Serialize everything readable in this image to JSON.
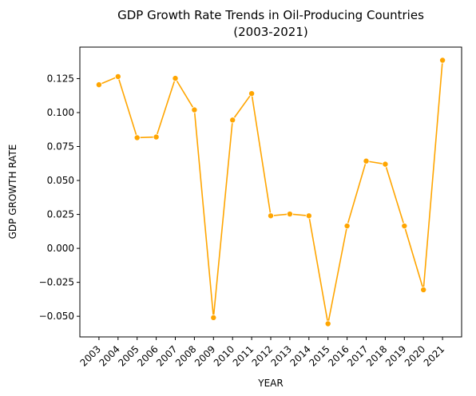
{
  "chart_data": {
    "type": "line",
    "title_line1": "GDP Growth Rate Trends in Oil-Producing Countries",
    "title_line2": "(2003-2021)",
    "xlabel": "YEAR",
    "ylabel": "GDP GROWTH RATE",
    "x": [
      "2003",
      "2004",
      "2005",
      "2006",
      "2007",
      "2008",
      "2009",
      "2010",
      "2011",
      "2012",
      "2013",
      "2014",
      "2015",
      "2016",
      "2017",
      "2018",
      "2019",
      "2020",
      "2021"
    ],
    "series": [
      {
        "values": [
          0.1205,
          0.1265,
          0.0815,
          0.082,
          0.1252,
          0.102,
          -0.051,
          0.0945,
          0.114,
          0.024,
          0.0253,
          0.024,
          -0.0555,
          0.0165,
          0.0643,
          0.062,
          0.0165,
          -0.0305,
          0.1385
        ],
        "color": "#FFA500"
      }
    ],
    "yticks": [
      "−0.050",
      "−0.025",
      "0.000",
      "0.025",
      "0.050",
      "0.075",
      "0.100",
      "0.125"
    ],
    "ytick_values": [
      -0.05,
      -0.025,
      0,
      0.025,
      0.05,
      0.075,
      0.1,
      0.125
    ],
    "ylim": [
      -0.0652,
      0.1482
    ],
    "grid": false,
    "legend": "none",
    "x_tick_rotation": "45 degrees"
  }
}
